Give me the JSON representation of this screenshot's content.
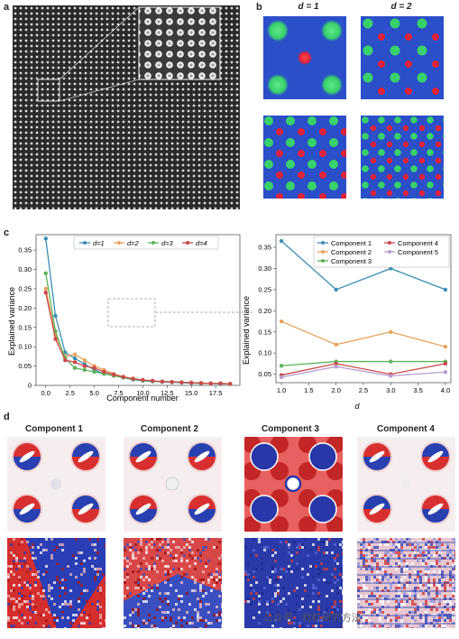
{
  "panels": {
    "a": "a",
    "b": "b",
    "c": "c",
    "d": "d"
  },
  "panel_b": {
    "title_d1": "d = 1",
    "title_d2": "d = 2",
    "colors": {
      "background": "#2a4fc9",
      "green": "#39d16b",
      "red": "#e0233a"
    }
  },
  "chart_data": [
    {
      "type": "line",
      "xlabel": "Component number",
      "ylabel": "Explained variance",
      "xticks": [
        "0.0",
        "2.5",
        "5.0",
        "7.5",
        "10.0",
        "12.5",
        "15.0",
        "17.5"
      ],
      "yticks": [
        "0",
        "0.05",
        "0.10",
        "0.15",
        "0.20",
        "0.25",
        "0.30",
        "0.35"
      ],
      "xlim": [
        -1,
        20
      ],
      "ylim": [
        0,
        0.39
      ],
      "legend_position": "top",
      "x": [
        0,
        1,
        2,
        3,
        4,
        5,
        6,
        7,
        8,
        9,
        10,
        11,
        12,
        13,
        14,
        15,
        16,
        17,
        18,
        19
      ],
      "series": [
        {
          "name": "d=1",
          "color": "#3a8fb7",
          "values": [
            0.38,
            0.18,
            0.085,
            0.07,
            0.055,
            0.04,
            0.03,
            0.025,
            0.02,
            0.015,
            0.012,
            0.01,
            0.009,
            0.008,
            0.007,
            0.006,
            0.005,
            0.005,
            0.004,
            0.004
          ]
        },
        {
          "name": "d=2",
          "color": "#e8a25a",
          "values": [
            0.25,
            0.13,
            0.075,
            0.08,
            0.065,
            0.05,
            0.04,
            0.03,
            0.022,
            0.018,
            0.014,
            0.011,
            0.01,
            0.009,
            0.008,
            0.007,
            0.006,
            0.005,
            0.005,
            0.004
          ]
        },
        {
          "name": "d=3",
          "color": "#5bb35a",
          "values": [
            0.29,
            0.14,
            0.07,
            0.045,
            0.04,
            0.035,
            0.03,
            0.025,
            0.02,
            0.016,
            0.013,
            0.011,
            0.01,
            0.009,
            0.008,
            0.007,
            0.006,
            0.005,
            0.005,
            0.004
          ]
        },
        {
          "name": "d=4",
          "color": "#c94848",
          "values": [
            0.24,
            0.12,
            0.065,
            0.06,
            0.05,
            0.045,
            0.035,
            0.028,
            0.022,
            0.017,
            0.014,
            0.012,
            0.01,
            0.009,
            0.008,
            0.007,
            0.006,
            0.005,
            0.005,
            0.004
          ]
        }
      ]
    },
    {
      "type": "line",
      "xlabel": "d",
      "ylabel": "Explained variance",
      "xticks": [
        "1.0",
        "1.5",
        "2.0",
        "2.5",
        "3.0",
        "3.5",
        "4.0"
      ],
      "yticks": [
        "0.05",
        "0.10",
        "0.15",
        "0.20",
        "0.25",
        "0.30",
        "0.35"
      ],
      "xlim": [
        0.9,
        4.1
      ],
      "ylim": [
        0.03,
        0.38
      ],
      "legend_position": "top",
      "x": [
        1,
        2,
        3,
        4
      ],
      "series": [
        {
          "name": "Component 1",
          "color": "#3a8fb7",
          "values": [
            0.365,
            0.25,
            0.3,
            0.25
          ]
        },
        {
          "name": "Component 2",
          "color": "#e8a25a",
          "values": [
            0.175,
            0.12,
            0.15,
            0.115
          ]
        },
        {
          "name": "Component 3",
          "color": "#5bb35a",
          "values": [
            0.07,
            0.08,
            0.08,
            0.08
          ]
        },
        {
          "name": "Component 4",
          "color": "#c94848",
          "values": [
            0.048,
            0.075,
            0.05,
            0.075
          ]
        },
        {
          "name": "Component 5",
          "color": "#b59bd1",
          "values": [
            0.043,
            0.068,
            0.046,
            0.055
          ]
        }
      ]
    }
  ],
  "panel_d": {
    "titles": [
      "Component 1",
      "Component 2",
      "Component 3",
      "Component 4"
    ]
  },
  "watermark": "公众号 · 材料研究方法"
}
